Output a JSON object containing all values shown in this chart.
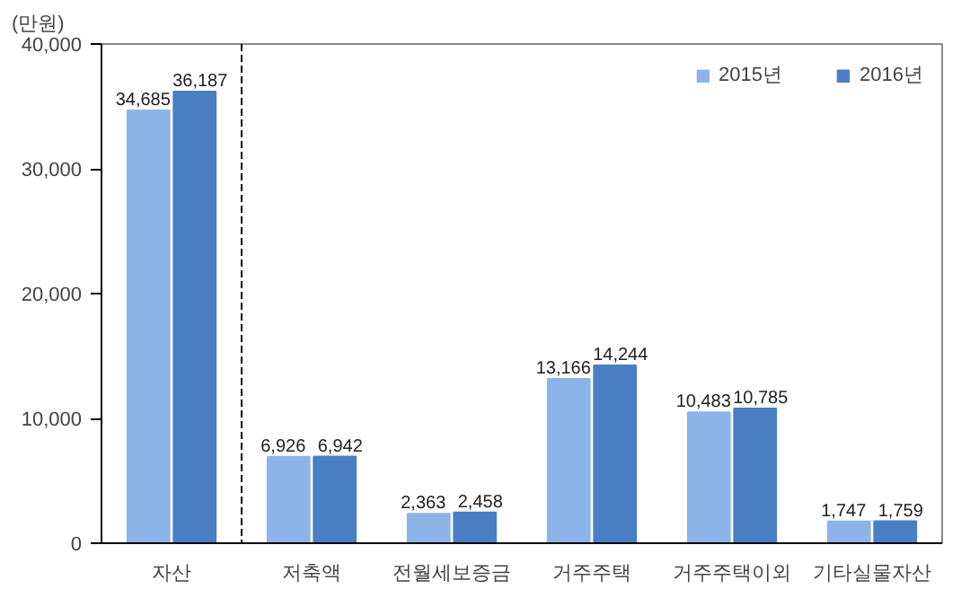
{
  "chart_data": {
    "type": "bar",
    "ylabel": "(만원)",
    "categories": [
      "자산",
      "저축액",
      "전월세보증금",
      "거주주택",
      "거주주택이외",
      "기타실물자산"
    ],
    "series": [
      {
        "name": "2015년",
        "color": "#8db4e8",
        "values": [
          34685,
          6926,
          2363,
          13166,
          10483,
          1747
        ],
        "value_labels": [
          "34,685",
          "6,926",
          "2,363",
          "13,166",
          "10,483",
          "1,747"
        ]
      },
      {
        "name": "2016년",
        "color": "#4a7fc4",
        "values": [
          36187,
          6942,
          2458,
          14244,
          10785,
          1759
        ],
        "value_labels": [
          "36,187",
          "6,942",
          "2,458",
          "14,244",
          "10,785",
          "1,759"
        ]
      }
    ],
    "ylim": [
      0,
      40000
    ],
    "yticks": [
      {
        "value": 0,
        "label": "0"
      },
      {
        "value": 10000,
        "label": "10,000"
      },
      {
        "value": 20000,
        "label": "20,000"
      },
      {
        "value": 30000,
        "label": "30,000"
      },
      {
        "value": 40000,
        "label": "40,000"
      }
    ],
    "grid": false,
    "legend": "top right"
  }
}
